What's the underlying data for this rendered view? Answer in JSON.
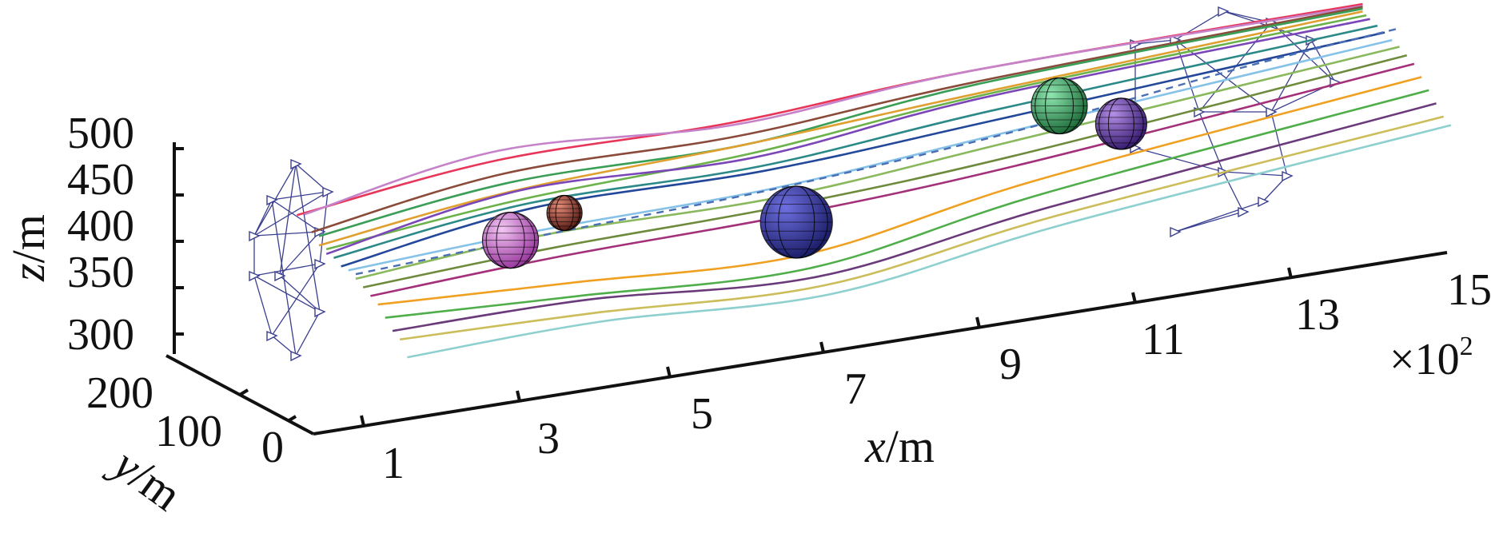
{
  "chart_data": {
    "type": "3d-line",
    "axes": {
      "x": {
        "label_var": "x",
        "label_unit": "/m",
        "ticks": [
          1,
          3,
          5,
          7,
          9,
          11,
          13,
          15
        ],
        "tick_labels": [
          "1",
          "3",
          "5",
          "7",
          "9",
          "11",
          "13",
          "15"
        ],
        "multiplier": "×10",
        "multiplier_exp": "2",
        "range": [
          0,
          15
        ]
      },
      "y": {
        "label_var": "y",
        "label_unit": "/m",
        "ticks": [
          0,
          100,
          200
        ],
        "tick_labels": [
          "0",
          "100",
          "200"
        ],
        "range": [
          0,
          200
        ]
      },
      "z": {
        "label_var": "z",
        "label_unit": "/m",
        "ticks": [
          300,
          350,
          400,
          450,
          500
        ],
        "tick_labels": [
          "300",
          "350",
          "400",
          "450",
          "500"
        ],
        "range": [
          300,
          500
        ]
      }
    },
    "reference_path": {
      "style": "dashed",
      "color": "#4a6fb5",
      "points": [
        [
          1.5,
          100,
          410
        ],
        [
          4,
          100,
          420
        ],
        [
          7,
          100,
          430
        ],
        [
          10,
          100,
          450
        ],
        [
          13,
          100,
          480
        ],
        [
          15,
          100,
          495
        ]
      ]
    },
    "obstacles": [
      {
        "x": 3.5,
        "y": 100,
        "z": 420,
        "r": 35,
        "color": "#c66ec9"
      },
      {
        "x": 4.2,
        "y": 100,
        "z": 440,
        "r": 22,
        "color": "#b04a3a"
      },
      {
        "x": 7.2,
        "y": 100,
        "z": 390,
        "r": 45,
        "color": "#3d3ea6"
      },
      {
        "x": 10.6,
        "y": 100,
        "z": 470,
        "r": 35,
        "color": "#3fae6a"
      },
      {
        "x": 11.4,
        "y": 100,
        "z": 440,
        "r": 32,
        "color": "#7a46b8"
      }
    ],
    "series": [
      {
        "color": "#e8365a",
        "points": [
          [
            1.5,
            180,
            440
          ],
          [
            4,
            170,
            470
          ],
          [
            7,
            170,
            470
          ],
          [
            10,
            160,
            490
          ],
          [
            15,
            150,
            500
          ]
        ]
      },
      {
        "color": "#c582c9",
        "points": [
          [
            1.5,
            170,
            445
          ],
          [
            4,
            170,
            480
          ],
          [
            7,
            165,
            470
          ],
          [
            10,
            160,
            490
          ],
          [
            15,
            150,
            498
          ]
        ]
      },
      {
        "color": "#8b4b3b",
        "points": [
          [
            1.5,
            160,
            430
          ],
          [
            4,
            160,
            460
          ],
          [
            7,
            160,
            460
          ],
          [
            10,
            155,
            480
          ],
          [
            15,
            150,
            497
          ]
        ]
      },
      {
        "color": "#3a9e57",
        "points": [
          [
            1.5,
            150,
            430
          ],
          [
            4,
            150,
            455
          ],
          [
            7,
            150,
            455
          ],
          [
            10,
            150,
            480
          ],
          [
            15,
            150,
            495
          ]
        ]
      },
      {
        "color": "#e0a030",
        "points": [
          [
            1.5,
            150,
            420
          ],
          [
            4,
            150,
            445
          ],
          [
            7,
            150,
            455
          ],
          [
            10,
            150,
            470
          ],
          [
            15,
            150,
            492
          ]
        ]
      },
      {
        "color": "#6bb24a",
        "points": [
          [
            1.5,
            140,
            420
          ],
          [
            4,
            140,
            440
          ],
          [
            7,
            140,
            450
          ],
          [
            10,
            145,
            470
          ],
          [
            15,
            145,
            490
          ]
        ]
      },
      {
        "color": "#7a46b8",
        "points": [
          [
            1.5,
            140,
            415
          ],
          [
            4,
            140,
            450
          ],
          [
            7,
            140,
            445
          ],
          [
            10,
            140,
            470
          ],
          [
            15,
            140,
            488
          ]
        ]
      },
      {
        "color": "#2b8a88",
        "points": [
          [
            1.5,
            130,
            415
          ],
          [
            4,
            130,
            440
          ],
          [
            7,
            130,
            440
          ],
          [
            10,
            130,
            460
          ],
          [
            15,
            130,
            485
          ]
        ]
      },
      {
        "color": "#23489a",
        "points": [
          [
            1.5,
            120,
            410
          ],
          [
            4,
            120,
            440
          ],
          [
            7,
            120,
            440
          ],
          [
            10,
            120,
            455
          ],
          [
            15,
            120,
            482
          ]
        ]
      },
      {
        "color": "#86c2e8",
        "points": [
          [
            1.5,
            110,
            410
          ],
          [
            4,
            110,
            420
          ],
          [
            7,
            110,
            425
          ],
          [
            10,
            110,
            445
          ],
          [
            15,
            110,
            478
          ]
        ]
      },
      {
        "color": "#8ab85c",
        "points": [
          [
            1.5,
            100,
            405
          ],
          [
            4,
            100,
            420
          ],
          [
            7,
            100,
            420
          ],
          [
            10,
            100,
            440
          ],
          [
            15,
            100,
            475
          ]
        ]
      },
      {
        "color": "#6e8b3d",
        "points": [
          [
            1.5,
            90,
            400
          ],
          [
            4,
            90,
            410
          ],
          [
            7,
            90,
            415
          ],
          [
            10,
            90,
            430
          ],
          [
            15,
            90,
            470
          ]
        ]
      },
      {
        "color": "#a4307a",
        "points": [
          [
            1.5,
            80,
            395
          ],
          [
            4,
            80,
            405
          ],
          [
            7,
            80,
            410
          ],
          [
            10,
            80,
            425
          ],
          [
            15,
            80,
            465
          ]
        ]
      },
      {
        "color": "#f0a020",
        "points": [
          [
            1.5,
            70,
            390
          ],
          [
            4,
            70,
            380
          ],
          [
            7,
            70,
            370
          ],
          [
            10,
            70,
            410
          ],
          [
            15,
            70,
            455
          ]
        ]
      },
      {
        "color": "#4fae4a",
        "points": [
          [
            1.5,
            60,
            380
          ],
          [
            4,
            60,
            370
          ],
          [
            7,
            60,
            360
          ],
          [
            10,
            60,
            400
          ],
          [
            15,
            60,
            445
          ]
        ]
      },
      {
        "color": "#6a3a7a",
        "points": [
          [
            1.5,
            50,
            370
          ],
          [
            4,
            50,
            370
          ],
          [
            7,
            50,
            355
          ],
          [
            10,
            50,
            390
          ],
          [
            15,
            50,
            435
          ]
        ]
      },
      {
        "color": "#cbbd5a",
        "points": [
          [
            1.5,
            40,
            365
          ],
          [
            4,
            40,
            360
          ],
          [
            7,
            40,
            350
          ],
          [
            10,
            40,
            385
          ],
          [
            15,
            40,
            425
          ]
        ]
      },
      {
        "color": "#8ed0cf",
        "points": [
          [
            1.5,
            30,
            350
          ],
          [
            4,
            30,
            355
          ],
          [
            7,
            30,
            345
          ],
          [
            10,
            30,
            380
          ],
          [
            15,
            30,
            420
          ]
        ]
      }
    ]
  }
}
